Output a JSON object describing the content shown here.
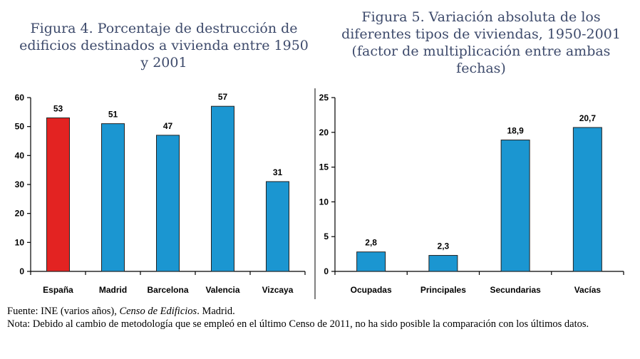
{
  "chart_data": [
    {
      "type": "bar",
      "title": "Figura 4. Porcentaje de destrucción de edificios destinados a vivienda entre 1950 y 2001",
      "categories": [
        "España",
        "Madrid",
        "Barcelona",
        "Valencia",
        "Vizcaya"
      ],
      "values": [
        53,
        51,
        47,
        57,
        31
      ],
      "value_labels": [
        "53",
        "51",
        "47",
        "57",
        "31"
      ],
      "colors": [
        "#e32322",
        "#1b96d1",
        "#1b96d1",
        "#1b96d1",
        "#1b96d1"
      ],
      "ylim": [
        0,
        60
      ],
      "yticks": [
        "0",
        "10",
        "20",
        "30",
        "40",
        "50",
        "60"
      ],
      "xlabel": "",
      "ylabel": "",
      "grid": false
    },
    {
      "type": "bar",
      "title": "Figura 5. Variación absoluta de los diferentes tipos de viviendas, 1950-2001 (factor de multiplicación entre ambas fechas)",
      "categories": [
        "Ocupadas",
        "Principales",
        "Secundarias",
        "Vacías"
      ],
      "values": [
        2.8,
        2.3,
        18.9,
        20.7
      ],
      "value_labels": [
        "2,8",
        "2,3",
        "18,9",
        "20,7"
      ],
      "colors": [
        "#1b96d1",
        "#1b96d1",
        "#1b96d1",
        "#1b96d1"
      ],
      "ylim": [
        0,
        25
      ],
      "yticks": [
        "0",
        "5",
        "10",
        "15",
        "20",
        "25"
      ],
      "xlabel": "",
      "ylabel": "",
      "grid": false
    }
  ],
  "notes": {
    "source_prefix": "Fuente: INE (varios años), ",
    "source_italic": "Censo de Edificios",
    "source_suffix": ". Madrid.",
    "note": "Nota: Debido al cambio de metodología que se empleó en el último Censo de 2011, no ha sido posible la comparación con los últimos datos."
  }
}
